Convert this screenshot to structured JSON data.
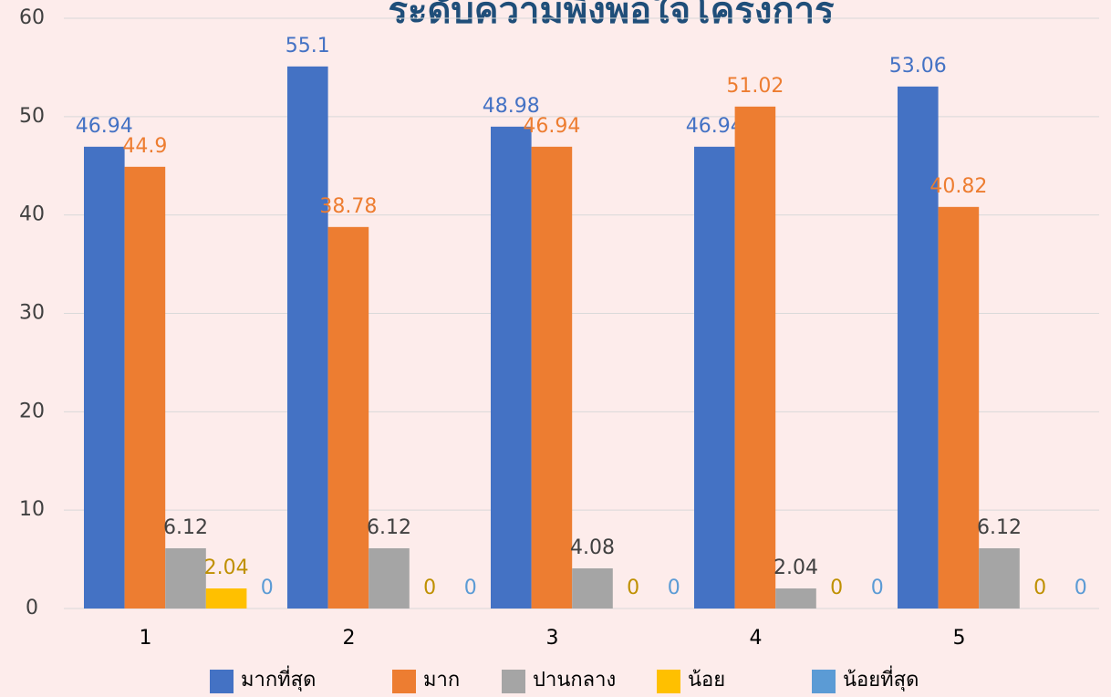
{
  "chart_data": {
    "type": "bar",
    "title": "ระดับความพึงพอใจโครงการ",
    "categories": [
      "1",
      "2",
      "3",
      "4",
      "5"
    ],
    "series": [
      {
        "name": "มากที่สุด",
        "color": "#4472c4",
        "label_color": "#4472c4",
        "values": [
          46.94,
          55.1,
          48.98,
          46.94,
          53.06
        ]
      },
      {
        "name": "มาก",
        "color": "#ed7d31",
        "label_color": "#ed7d31",
        "values": [
          44.9,
          38.78,
          46.94,
          51.02,
          40.82
        ]
      },
      {
        "name": "ปานกลาง",
        "color": "#a5a5a5",
        "label_color": "#404040",
        "values": [
          6.12,
          6.12,
          4.08,
          2.04,
          6.12
        ]
      },
      {
        "name": "น้อย",
        "color": "#ffc000",
        "label_color": "#bf9000",
        "values": [
          2.04,
          0,
          0,
          0,
          0
        ]
      },
      {
        "name": "น้อยที่สุด",
        "color": "#5b9bd5",
        "label_color": "#5b9bd5",
        "values": [
          0,
          0,
          0,
          0,
          0
        ]
      }
    ],
    "ylim": [
      0,
      60
    ],
    "yticks": [
      0,
      10,
      20,
      30,
      40,
      50,
      60
    ],
    "grid": true,
    "legend": "bottom"
  }
}
